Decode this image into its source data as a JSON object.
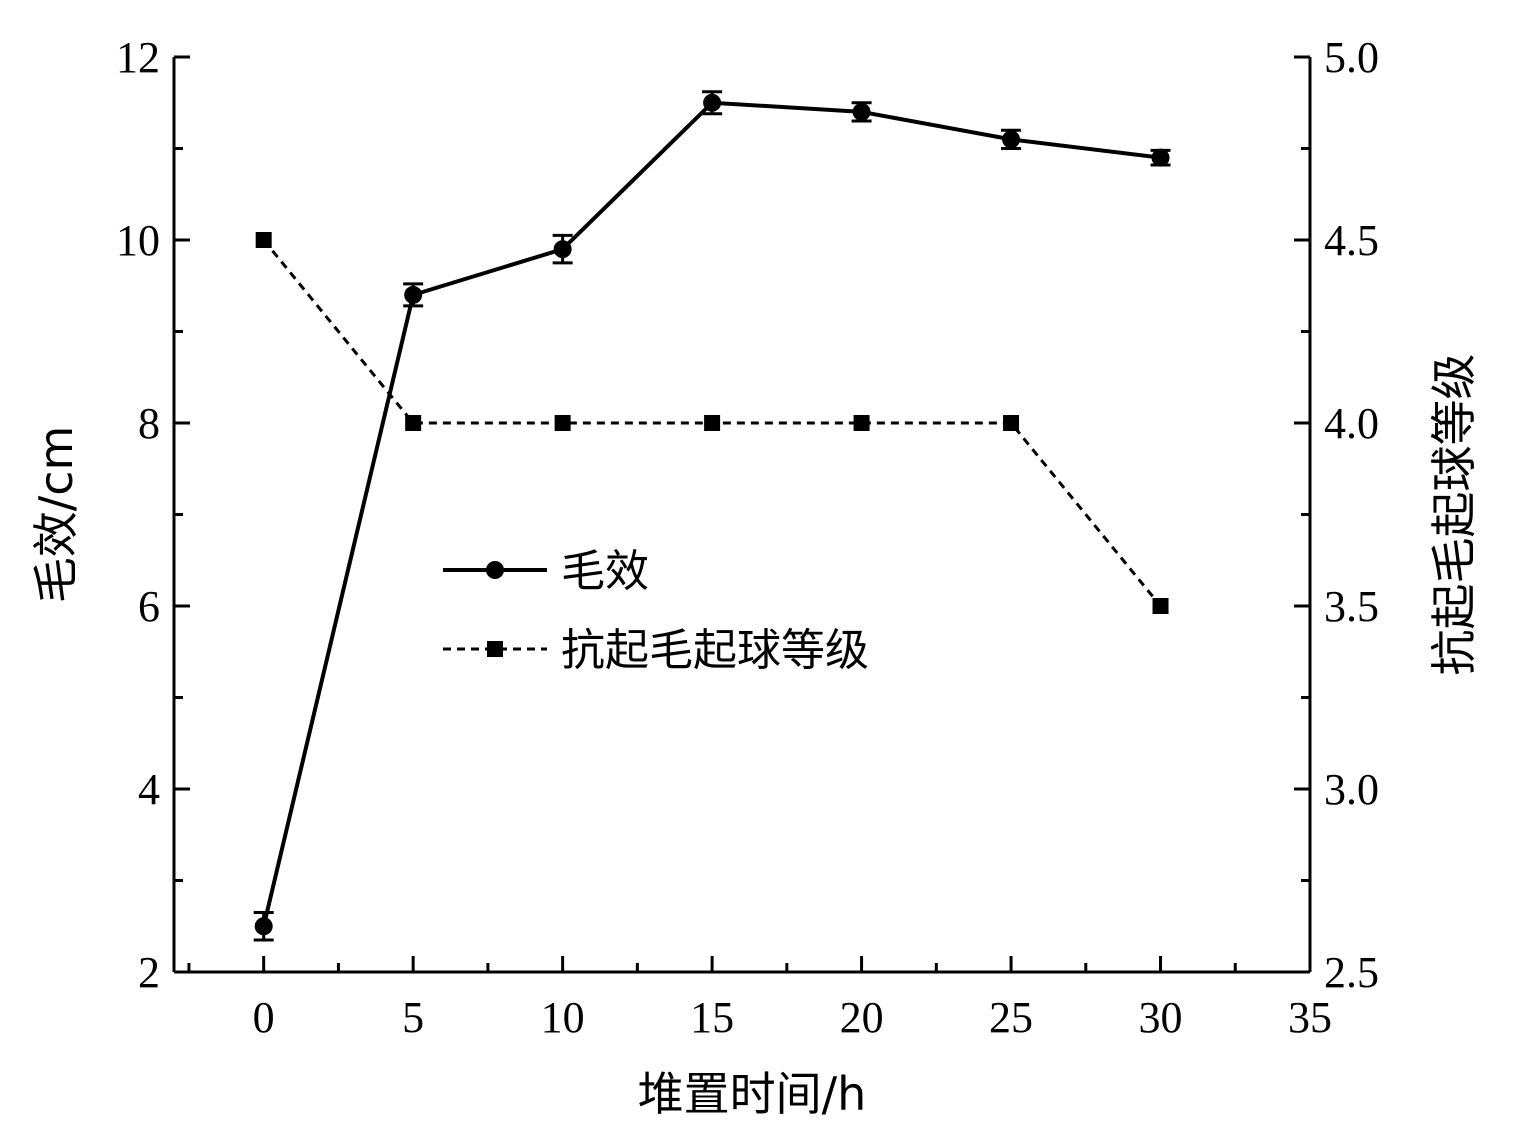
{
  "chart_data": {
    "type": "line",
    "x": [
      0,
      5,
      10,
      15,
      20,
      25,
      30
    ],
    "xlabel": "堆置时间/h",
    "xlim": [
      -3,
      35
    ],
    "xticks": [
      0,
      5,
      10,
      15,
      20,
      25,
      30,
      35
    ],
    "ylabel_left": "毛效/cm",
    "ylim_left": [
      2,
      12
    ],
    "yticks_left": [
      2,
      4,
      6,
      8,
      10,
      12
    ],
    "ylabel_right": "抗起毛起球等级",
    "ylim_right": [
      2.5,
      5.0
    ],
    "yticks_right": [
      "2.5",
      "3.0",
      "3.5",
      "4.0",
      "4.5",
      "5.0"
    ],
    "series": [
      {
        "name": "毛效",
        "axis": "left",
        "values": [
          2.5,
          9.4,
          9.9,
          11.5,
          11.4,
          11.1,
          10.9
        ],
        "error": [
          0.15,
          0.12,
          0.15,
          0.12,
          0.1,
          0.1,
          0.08
        ],
        "line_style": "solid",
        "marker": "circle",
        "color": "#000000"
      },
      {
        "name": "抗起毛起球等级",
        "axis": "right",
        "values": [
          4.5,
          4.0,
          4.0,
          4.0,
          4.0,
          4.0,
          3.5
        ],
        "line_style": "dashed",
        "marker": "square",
        "color": "#000000"
      }
    ],
    "legend_position": "center-left",
    "grid": false
  }
}
